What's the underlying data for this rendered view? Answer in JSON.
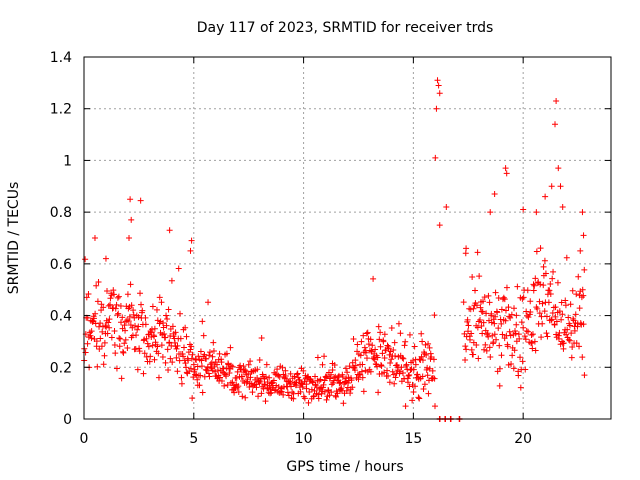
{
  "chart_data": {
    "type": "scatter",
    "title": "Day 117 of 2023, SRMTID for receiver trds",
    "xlabel": "GPS time / hours",
    "ylabel": "SRMTID / TECUs",
    "xlim": [
      0,
      24
    ],
    "ylim": [
      0,
      1.4
    ],
    "xticks": [
      0,
      5,
      10,
      15,
      20
    ],
    "yticks": [
      0,
      0.2,
      0.4,
      0.6,
      0.8,
      1,
      1.2,
      1.4
    ],
    "ytick_labels": [
      "0",
      "0.2",
      "0.4",
      "0.6",
      "0.8",
      "1",
      "1.2",
      "1.4"
    ],
    "grid": true,
    "legend": "none",
    "marker": "+",
    "color": "#ff0000",
    "series": [
      {
        "name": "SRMTID",
        "coverage_hours": [
          [
            0.0,
            16.0
          ],
          [
            17.3,
            22.8
          ]
        ],
        "zero_points_x": [
          16.2,
          16.45,
          16.7,
          17.1
        ],
        "profile_hours": [
          0,
          1,
          2,
          3,
          4,
          5,
          6,
          7,
          8,
          9,
          10,
          11,
          12,
          13,
          14,
          15,
          16,
          17,
          18,
          19,
          20,
          21,
          22,
          22.8
        ],
        "typical_values": [
          0.3,
          0.38,
          0.35,
          0.3,
          0.3,
          0.2,
          0.22,
          0.16,
          0.14,
          0.14,
          0.13,
          0.14,
          0.15,
          0.27,
          0.22,
          0.16,
          0.22,
          0.3,
          0.38,
          0.33,
          0.34,
          0.48,
          0.32,
          0.4
        ],
        "spread": [
          0.12,
          0.12,
          0.14,
          0.1,
          0.1,
          0.08,
          0.08,
          0.05,
          0.05,
          0.05,
          0.05,
          0.05,
          0.06,
          0.1,
          0.09,
          0.07,
          0.13,
          0.12,
          0.13,
          0.14,
          0.14,
          0.18,
          0.12,
          0.15
        ],
        "notable_points": [
          {
            "x": 0.5,
            "y": 0.7
          },
          {
            "x": 1.0,
            "y": 0.62
          },
          {
            "x": 2.1,
            "y": 0.85
          },
          {
            "x": 2.15,
            "y": 0.77
          },
          {
            "x": 2.05,
            "y": 0.7
          },
          {
            "x": 3.9,
            "y": 0.73
          },
          {
            "x": 4.9,
            "y": 0.69
          },
          {
            "x": 4.85,
            "y": 0.65
          },
          {
            "x": 16.1,
            "y": 1.31
          },
          {
            "x": 16.15,
            "y": 1.29
          },
          {
            "x": 16.2,
            "y": 1.26
          },
          {
            "x": 16.05,
            "y": 1.2
          },
          {
            "x": 16.0,
            "y": 1.01
          },
          {
            "x": 16.2,
            "y": 0.75
          },
          {
            "x": 16.5,
            "y": 0.82
          },
          {
            "x": 17.4,
            "y": 0.66
          },
          {
            "x": 18.5,
            "y": 0.8
          },
          {
            "x": 18.7,
            "y": 0.87
          },
          {
            "x": 19.2,
            "y": 0.97
          },
          {
            "x": 19.25,
            "y": 0.95
          },
          {
            "x": 20.0,
            "y": 0.81
          },
          {
            "x": 20.6,
            "y": 0.8
          },
          {
            "x": 21.0,
            "y": 0.86
          },
          {
            "x": 21.3,
            "y": 0.9
          },
          {
            "x": 21.5,
            "y": 1.23
          },
          {
            "x": 21.45,
            "y": 1.14
          },
          {
            "x": 21.6,
            "y": 0.97
          },
          {
            "x": 21.7,
            "y": 0.9
          },
          {
            "x": 21.8,
            "y": 0.82
          },
          {
            "x": 22.7,
            "y": 0.8
          },
          {
            "x": 22.75,
            "y": 0.71
          },
          {
            "x": 22.6,
            "y": 0.65
          }
        ]
      }
    ]
  }
}
